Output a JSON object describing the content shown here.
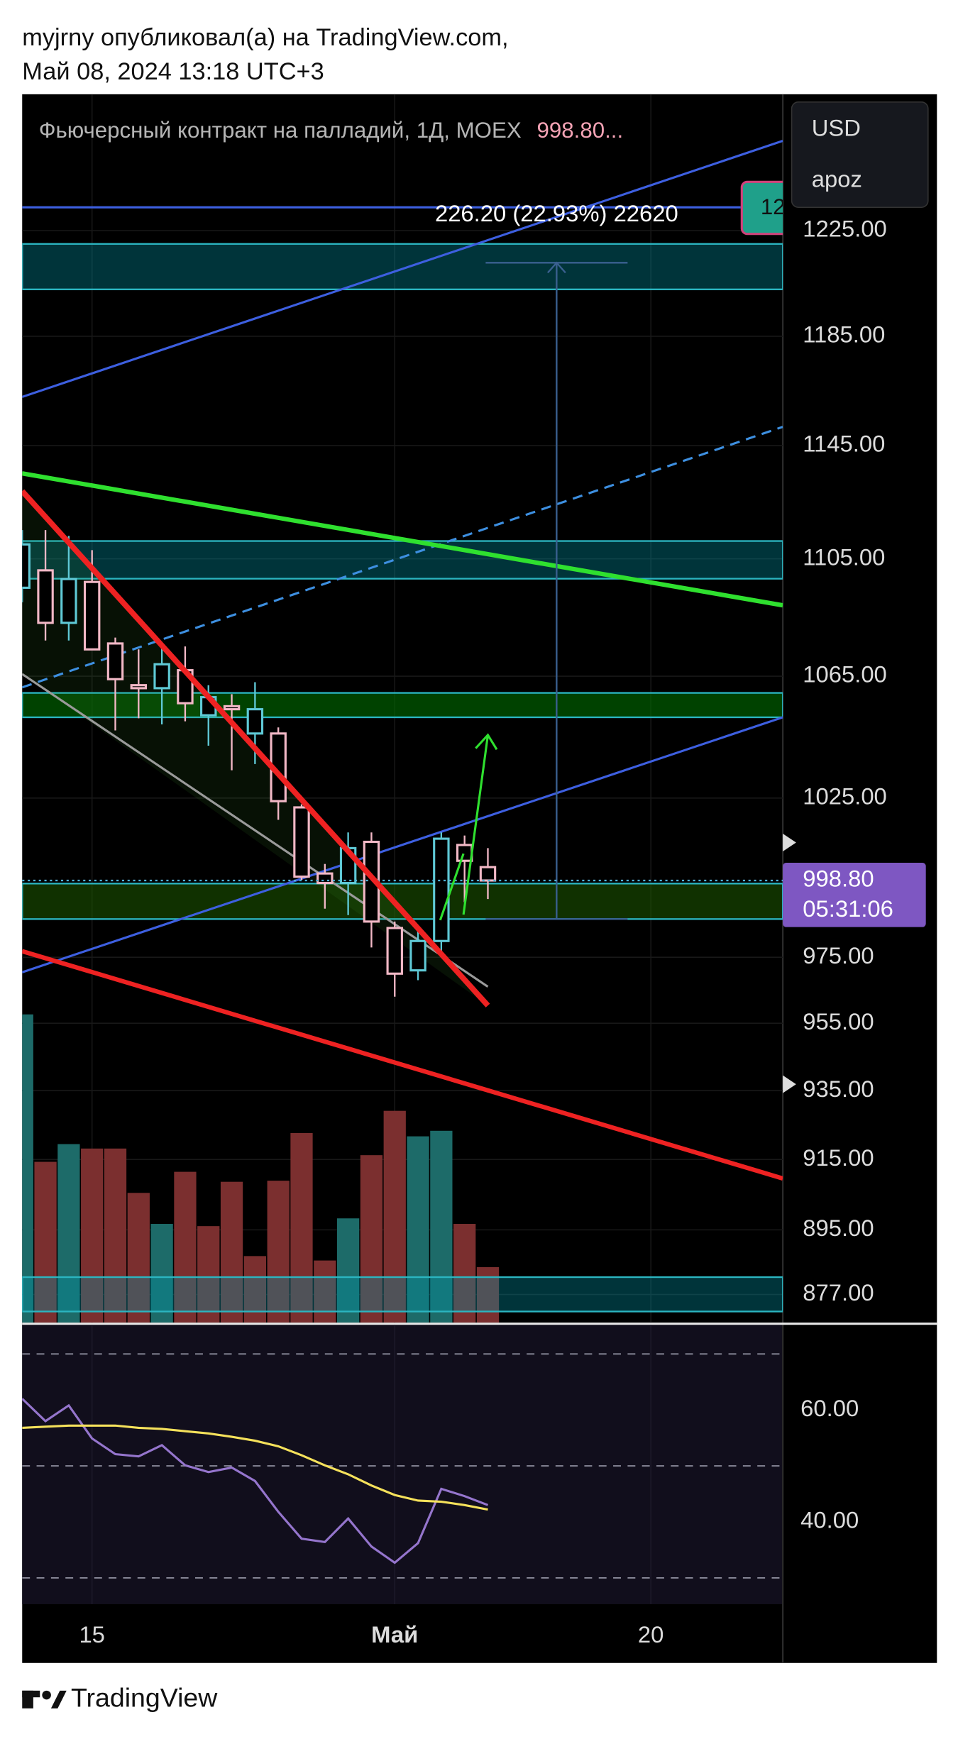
{
  "header": {
    "line1": "myjrny опубликовал(а) на TradingView.com,",
    "line2": "Май 08, 2024 13:18 UTC+3"
  },
  "currency_menu": [
    "USD",
    "apoz"
  ],
  "footer": {
    "brand": "TradingView"
  },
  "chart_data": [
    {
      "type": "candlestick",
      "title": "Фьючерсный контракт на палладий, 1Д, MOEX",
      "legend_value": "998.80...",
      "annotations": [
        "226.20 (22.93%) 22620",
        "12"
      ],
      "x": [
        -3,
        -2,
        -1,
        0,
        1,
        2,
        3,
        4,
        5,
        6,
        7,
        8,
        9,
        10,
        11,
        12,
        13,
        14,
        15,
        16,
        17
      ],
      "open": [
        1095,
        1101,
        1083,
        1097,
        1076,
        1062,
        1061,
        1067,
        1052,
        1055,
        1046,
        1046,
        1022,
        1001,
        998,
        1011,
        984,
        971,
        980,
        1010,
        1003
      ],
      "high": [
        1115,
        1115,
        1113,
        1108,
        1078,
        1074,
        1076,
        1075,
        1062,
        1059,
        1063,
        1048,
        1023,
        1004,
        1014,
        1014,
        986,
        983,
        1014,
        1013,
        1009
      ],
      "low": [
        1090,
        1077,
        1077,
        1074,
        1047,
        1051,
        1049,
        1050,
        1042,
        1034,
        1036,
        1018,
        999,
        990,
        988,
        978,
        963,
        968,
        976,
        992,
        993
      ],
      "close": [
        1110,
        1083,
        1098,
        1074,
        1064,
        1061,
        1069,
        1056,
        1058,
        1054,
        1054,
        1024,
        1000,
        998,
        1009,
        986,
        970,
        980,
        1012,
        1005,
        998.8
      ],
      "up_color": "#5fc9d6",
      "down_color": "#f2b8c6",
      "volume": {
        "values": [
          278,
          145,
          161,
          157,
          157,
          117,
          89,
          136,
          87,
          127,
          60,
          128,
          171,
          56,
          94,
          151,
          191,
          168,
          173,
          89,
          50
        ],
        "colors": [
          "#1d6b69",
          "#7b2f2f",
          "#1d6b69",
          "#7b2f2f",
          "#7b2f2f",
          "#7b2f2f",
          "#1d6b69",
          "#7b2f2f",
          "#7b2f2f",
          "#7b2f2f",
          "#7b2f2f",
          "#7b2f2f",
          "#7b2f2f",
          "#7b2f2f",
          "#1d6b69",
          "#7b2f2f",
          "#7b2f2f",
          "#1d6b69",
          "#1d6b69",
          "#7b2f2f",
          "#7b2f2f"
        ],
        "lim": [
          0,
          400
        ]
      },
      "last_price": {
        "value": 998.8,
        "label": "998.80"
      },
      "countdown": "05:31:06",
      "log": true,
      "grid": true,
      "xlim": [
        -3,
        29.667
      ],
      "xticks": [
        {
          "value": 0,
          "label": "15"
        },
        {
          "value": 13,
          "label": "Май"
        },
        {
          "value": 24,
          "label": "20"
        }
      ],
      "ylim": [
        869.3,
        1278.6
      ],
      "yticks": [
        {
          "value": 877,
          "label": "877.00"
        },
        {
          "value": 895,
          "label": "895.00"
        },
        {
          "value": 915,
          "label": "915.00"
        },
        {
          "value": 935,
          "label": "935.00"
        },
        {
          "value": 955,
          "label": "955.00"
        },
        {
          "value": 975,
          "label": "975.00"
        },
        {
          "value": 1025,
          "label": "1025.00"
        },
        {
          "value": 1065,
          "label": "1065.00"
        },
        {
          "value": 1105,
          "label": "1105.00"
        },
        {
          "value": 1145,
          "label": "1145.00"
        },
        {
          "value": 1185,
          "label": "1185.00"
        },
        {
          "value": 1225,
          "label": "1225.00"
        }
      ]
    },
    {
      "type": "line",
      "x": [
        -3,
        -2,
        -1,
        0,
        1,
        2,
        3,
        4,
        5,
        6,
        7,
        8,
        9,
        10,
        11,
        12,
        13,
        14,
        15,
        16,
        17
      ],
      "series": [
        {
          "color": "#9575cd",
          "values": [
            62.0,
            58.0,
            60.8,
            54.9,
            52.1,
            51.7,
            53.7,
            50.1,
            48.9,
            49.7,
            47.3,
            41.8,
            37.0,
            36.4,
            40.6,
            35.6,
            32.7,
            36.2,
            45.9,
            44.6,
            43.0
          ]
        },
        {
          "color": "#f5e15b",
          "values": [
            56.8,
            57.0,
            57.2,
            57.2,
            57.2,
            56.8,
            56.6,
            56.2,
            55.8,
            55.2,
            54.5,
            53.5,
            51.9,
            50.1,
            48.5,
            46.5,
            44.8,
            43.8,
            43.6,
            43.0,
            42.2
          ]
        }
      ],
      "levels": [
        30,
        50,
        70
      ],
      "ylim": [
        25.3,
        75.2
      ],
      "yticks": [
        {
          "value": 40,
          "label": "40.00"
        },
        {
          "value": 60,
          "label": "60.00"
        }
      ]
    }
  ]
}
